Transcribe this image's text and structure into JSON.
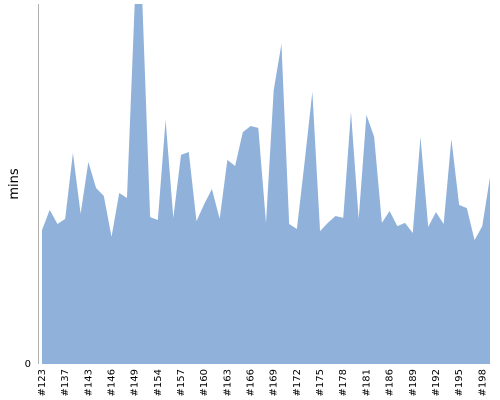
{
  "chart_data": {
    "type": "area",
    "title": "",
    "xlabel": "",
    "ylabel": "mins",
    "ylim": [
      0,
      100
    ],
    "y_ticks": [
      "0"
    ],
    "grid": false,
    "legend": "none",
    "series_color": "#8fb1da",
    "x_tick_labels": [
      "#123",
      "#137",
      "#143",
      "#146",
      "#149",
      "#154",
      "#157",
      "#160",
      "#163",
      "#166",
      "#169",
      "#172",
      "#175",
      "#178",
      "#181",
      "#186",
      "#189",
      "#192",
      "#195",
      "#198"
    ],
    "x_tick_index": [
      0,
      3,
      6,
      9,
      12,
      15,
      18,
      21,
      24,
      27,
      30,
      33,
      36,
      39,
      42,
      45,
      48,
      51,
      54,
      57
    ],
    "values": [
      37.2,
      42.8,
      38.9,
      40.3,
      58.6,
      41.7,
      56.1,
      48.9,
      46.7,
      35.3,
      47.5,
      46.1,
      100.0,
      100.0,
      40.8,
      40.0,
      67.8,
      40.6,
      58.1,
      58.9,
      39.7,
      44.4,
      48.6,
      40.3,
      56.7,
      55.0,
      64.4,
      66.1,
      65.6,
      39.2,
      76.1,
      88.9,
      38.9,
      37.5,
      56.1,
      75.6,
      36.9,
      39.2,
      41.1,
      40.6,
      70.0,
      40.3,
      69.2,
      63.1,
      39.2,
      42.5,
      38.3,
      39.2,
      36.4,
      63.1,
      38.1,
      42.2,
      38.9,
      62.5,
      44.2,
      43.3,
      34.4,
      38.3,
      51.9
    ]
  }
}
